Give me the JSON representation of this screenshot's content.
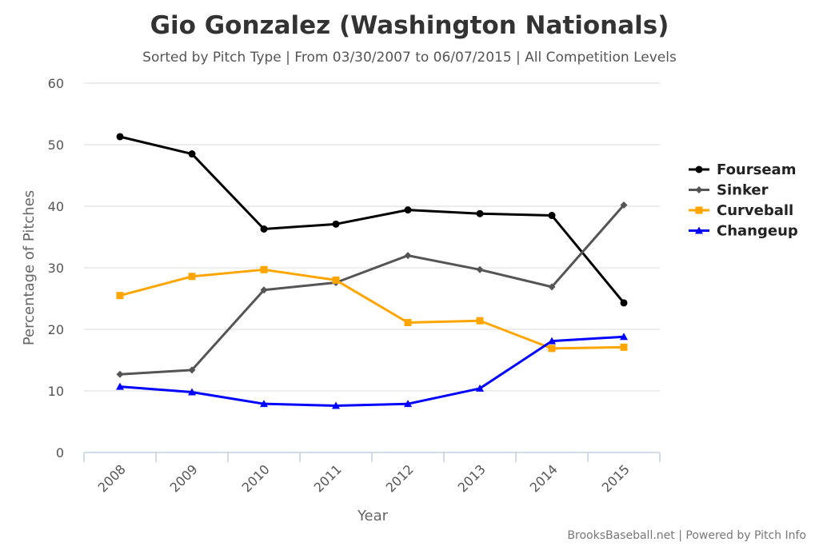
{
  "chart_data": {
    "type": "line",
    "title": "Gio Gonzalez (Washington Nationals)",
    "subtitle": "Sorted by Pitch Type | From 03/30/2007 to 06/07/2015 | All Competition Levels",
    "xlabel": "Year",
    "ylabel": "Percentage of Pitches",
    "categories": [
      "2008",
      "2009",
      "2010",
      "2011",
      "2012",
      "2013",
      "2014",
      "2015"
    ],
    "ylim": [
      0,
      60
    ],
    "yticks": [
      "0",
      "10",
      "20",
      "30",
      "40",
      "50",
      "60"
    ],
    "grid": true,
    "legend_position": "right",
    "series": [
      {
        "name": "Fourseam",
        "color": "#000000",
        "marker": "circle",
        "values": [
          51.3,
          48.5,
          36.3,
          37.1,
          39.4,
          38.8,
          38.5,
          24.3
        ]
      },
      {
        "name": "Sinker",
        "color": "#555555",
        "marker": "diamond",
        "values": [
          12.7,
          13.4,
          26.4,
          27.6,
          32.0,
          29.7,
          26.9,
          40.2
        ]
      },
      {
        "name": "Curveball",
        "color": "#FFA500",
        "marker": "square",
        "values": [
          25.5,
          28.6,
          29.7,
          28.0,
          21.1,
          21.4,
          16.9,
          17.1
        ]
      },
      {
        "name": "Changeup",
        "color": "#0000FF",
        "marker": "triangle",
        "values": [
          10.7,
          9.8,
          7.9,
          7.6,
          7.9,
          10.4,
          18.1,
          18.8
        ]
      }
    ],
    "credits": "BrooksBaseball.net | Powered by Pitch Info"
  }
}
